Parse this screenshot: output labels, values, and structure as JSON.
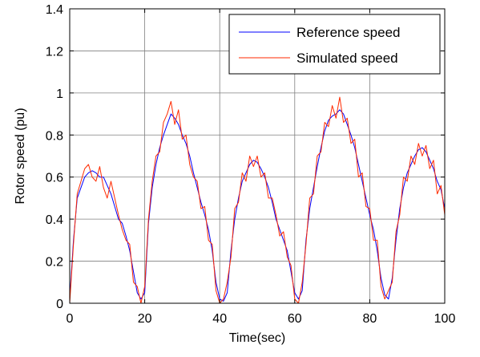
{
  "chart_data": {
    "type": "line",
    "title": "",
    "xlabel": "Time(sec)",
    "ylabel": "Rotor speed (pu)",
    "xlim": [
      0,
      100
    ],
    "ylim": [
      0,
      1.4
    ],
    "xticks": [
      0,
      20,
      40,
      60,
      80,
      100
    ],
    "xtick_labels": [
      "0",
      "20",
      "40",
      "60",
      "80",
      "100"
    ],
    "yticks": [
      0,
      0.2,
      0.4,
      0.6,
      0.8,
      1,
      1.2,
      1.4
    ],
    "ytick_labels": [
      "0",
      "0.2",
      "0.4",
      "0.6",
      "0.8",
      "1",
      "1.2",
      "1.4"
    ],
    "grid": true,
    "legend_position": "top-right",
    "x": [
      0,
      1,
      2,
      3,
      4,
      5,
      6,
      7,
      8,
      9,
      10,
      11,
      12,
      13,
      14,
      15,
      16,
      17,
      18,
      19,
      20,
      21,
      22,
      23,
      24,
      25,
      26,
      27,
      28,
      29,
      30,
      31,
      32,
      33,
      34,
      35,
      36,
      37,
      38,
      39,
      40,
      41,
      42,
      43,
      44,
      45,
      46,
      47,
      48,
      49,
      50,
      51,
      52,
      53,
      54,
      55,
      56,
      57,
      58,
      59,
      60,
      61,
      62,
      63,
      64,
      65,
      66,
      67,
      68,
      69,
      70,
      71,
      72,
      73,
      74,
      75,
      76,
      77,
      78,
      79,
      80,
      81,
      82,
      83,
      84,
      85,
      86,
      87,
      88,
      89,
      90,
      91,
      92,
      93,
      94,
      95,
      96,
      97,
      98,
      99,
      100
    ],
    "series": [
      {
        "name": "Reference speed",
        "color": "#0000ff",
        "values": [
          0.02,
          0.3,
          0.5,
          0.55,
          0.6,
          0.62,
          0.63,
          0.62,
          0.6,
          0.6,
          0.56,
          0.52,
          0.46,
          0.4,
          0.38,
          0.32,
          0.25,
          0.15,
          0.05,
          0.02,
          0.05,
          0.38,
          0.55,
          0.66,
          0.74,
          0.8,
          0.85,
          0.9,
          0.88,
          0.85,
          0.8,
          0.76,
          0.7,
          0.62,
          0.55,
          0.48,
          0.42,
          0.35,
          0.25,
          0.1,
          0.02,
          0.01,
          0.05,
          0.25,
          0.4,
          0.5,
          0.58,
          0.62,
          0.66,
          0.68,
          0.67,
          0.64,
          0.6,
          0.55,
          0.48,
          0.4,
          0.35,
          0.3,
          0.25,
          0.15,
          0.05,
          0.02,
          0.06,
          0.3,
          0.45,
          0.55,
          0.65,
          0.74,
          0.82,
          0.87,
          0.89,
          0.9,
          0.92,
          0.9,
          0.85,
          0.8,
          0.74,
          0.66,
          0.58,
          0.5,
          0.42,
          0.35,
          0.25,
          0.12,
          0.04,
          0.02,
          0.12,
          0.3,
          0.45,
          0.55,
          0.62,
          0.66,
          0.7,
          0.73,
          0.74,
          0.72,
          0.68,
          0.64,
          0.58,
          0.54,
          0.45
        ]
      },
      {
        "name": "Simulated speed",
        "color": "#ff2a00",
        "values": [
          0.0,
          0.28,
          0.52,
          0.58,
          0.64,
          0.66,
          0.6,
          0.58,
          0.65,
          0.55,
          0.5,
          0.58,
          0.5,
          0.42,
          0.35,
          0.3,
          0.28,
          0.1,
          0.08,
          0.0,
          0.08,
          0.4,
          0.58,
          0.7,
          0.72,
          0.86,
          0.9,
          0.96,
          0.85,
          0.92,
          0.78,
          0.8,
          0.66,
          0.6,
          0.58,
          0.45,
          0.46,
          0.3,
          0.28,
          0.06,
          0.0,
          0.02,
          0.1,
          0.22,
          0.45,
          0.48,
          0.62,
          0.58,
          0.7,
          0.65,
          0.7,
          0.6,
          0.62,
          0.5,
          0.5,
          0.42,
          0.32,
          0.34,
          0.22,
          0.18,
          0.02,
          0.0,
          0.1,
          0.28,
          0.5,
          0.52,
          0.7,
          0.72,
          0.86,
          0.84,
          0.94,
          0.88,
          0.98,
          0.86,
          0.88,
          0.76,
          0.78,
          0.6,
          0.62,
          0.46,
          0.45,
          0.3,
          0.3,
          0.08,
          0.02,
          0.06,
          0.1,
          0.34,
          0.42,
          0.6,
          0.58,
          0.7,
          0.66,
          0.76,
          0.7,
          0.75,
          0.64,
          0.68,
          0.52,
          0.56,
          0.42
        ]
      }
    ]
  }
}
